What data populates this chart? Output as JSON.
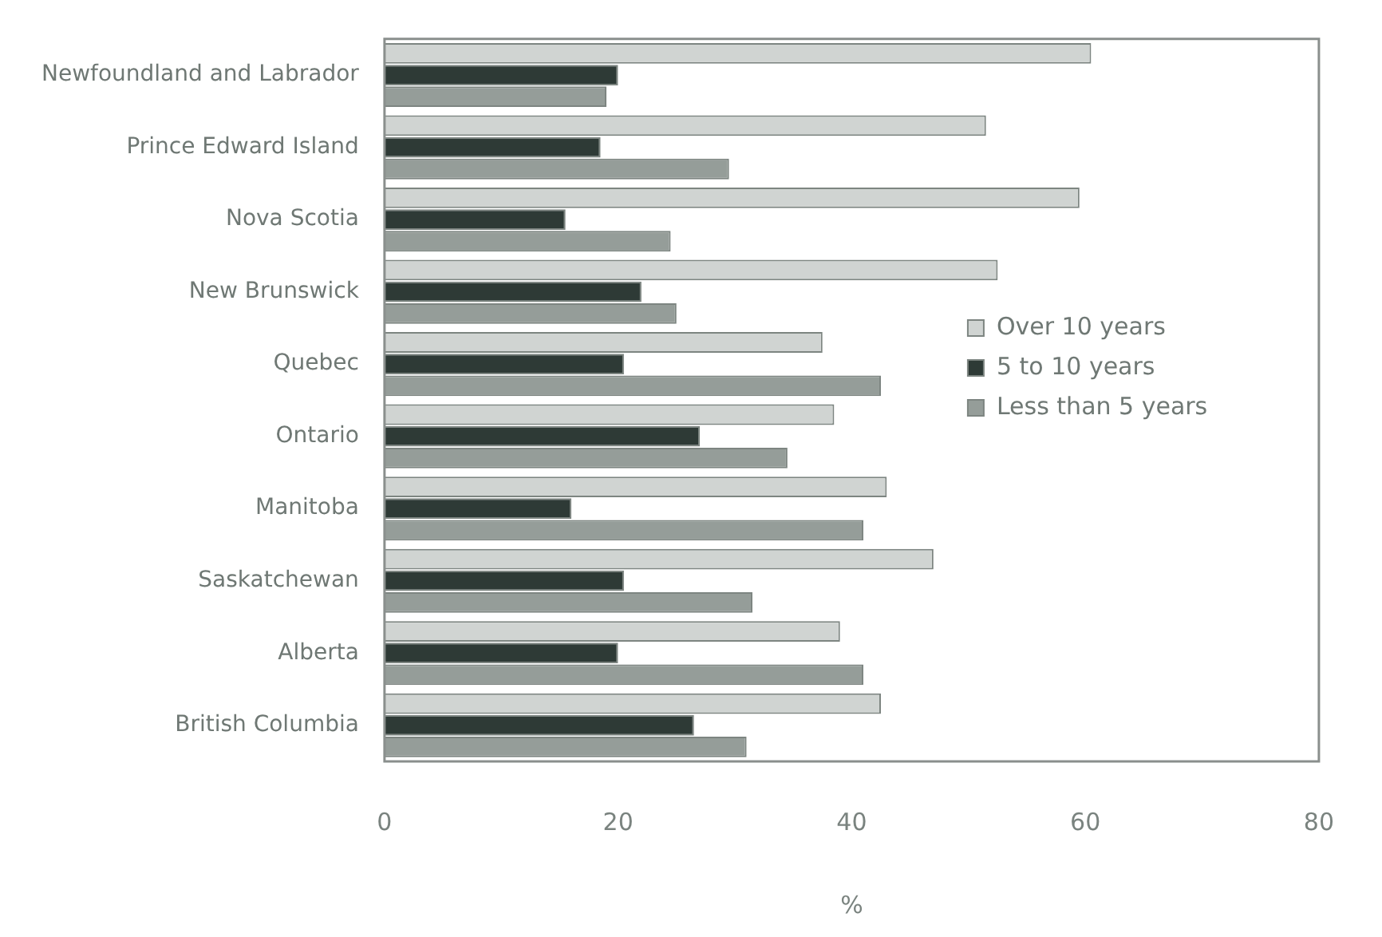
{
  "chart_data": {
    "type": "bar",
    "orientation": "horizontal",
    "xlabel": "%",
    "categories": [
      "Newfoundland and Labrador",
      "Prince Edward Island",
      "Nova Scotia",
      "New Brunswick",
      "Quebec",
      "Ontario",
      "Manitoba",
      "Saskatchewan",
      "Alberta",
      "British Columbia"
    ],
    "series": [
      {
        "name": "Over 10 years",
        "color": "#d0d4d2",
        "values": [
          60.5,
          51.5,
          59.5,
          52.5,
          37.5,
          38.5,
          43,
          47,
          39,
          42.5
        ]
      },
      {
        "name": "5 to 10 years",
        "color": "#2e3a36",
        "values": [
          20,
          18.5,
          15.5,
          22,
          20.5,
          27,
          16,
          20.5,
          20,
          26.5
        ]
      },
      {
        "name": "Less than 5 years",
        "color": "#959d99",
        "values": [
          19,
          29.5,
          24.5,
          25,
          42.5,
          34.5,
          41,
          31.5,
          41,
          31
        ]
      }
    ],
    "xlim": [
      0,
      80
    ],
    "xticks": [
      0,
      20,
      40,
      60,
      80
    ],
    "grid": false,
    "legend": "right"
  }
}
